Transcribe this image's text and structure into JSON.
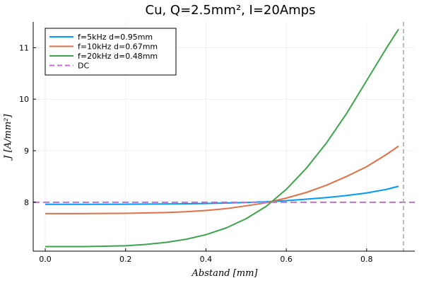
{
  "chart_data": {
    "type": "line",
    "title": "Cu, Q=2.5mm², I=20Amps",
    "xlabel": "Abstand  [mm]",
    "ylabel": "J  [A/mm²]",
    "xlim": [
      -0.03,
      0.92
    ],
    "ylim": [
      7.05,
      11.5
    ],
    "x_ticks": [
      0.0,
      0.2,
      0.4,
      0.6,
      0.8
    ],
    "x_tick_labels": [
      "0.0",
      "0.2",
      "0.4",
      "0.6",
      "0.8"
    ],
    "y_ticks": [
      8,
      9,
      10,
      11
    ],
    "y_tick_labels": [
      "8",
      "9",
      "10",
      "11"
    ],
    "grid": true,
    "legend_position": "top-left",
    "series": [
      {
        "name": "f=5kHz  d=0.95mm",
        "color": "#009af9",
        "style": "solid",
        "x": [
          0.0,
          0.1,
          0.2,
          0.3,
          0.4,
          0.5,
          0.55,
          0.6,
          0.65,
          0.7,
          0.75,
          0.8,
          0.85,
          0.8796
        ],
        "y": [
          7.96,
          7.96,
          7.962,
          7.966,
          7.975,
          7.995,
          8.01,
          8.03,
          8.06,
          8.09,
          8.13,
          8.18,
          8.25,
          8.31
        ]
      },
      {
        "name": "f=10kHz  d=0.67mm",
        "color": "#e26f46",
        "style": "solid",
        "x": [
          0.0,
          0.1,
          0.2,
          0.3,
          0.35,
          0.4,
          0.45,
          0.5,
          0.55,
          0.6,
          0.65,
          0.7,
          0.75,
          0.8,
          0.85,
          0.8796
        ],
        "y": [
          7.78,
          7.78,
          7.785,
          7.8,
          7.815,
          7.84,
          7.875,
          7.93,
          7.99,
          8.08,
          8.19,
          8.33,
          8.5,
          8.69,
          8.93,
          9.09
        ]
      },
      {
        "name": "f=20kHz  d=0.48mm",
        "color": "#3da44d",
        "style": "solid",
        "x": [
          0.0,
          0.1,
          0.2,
          0.25,
          0.3,
          0.35,
          0.4,
          0.45,
          0.5,
          0.55,
          0.6,
          0.65,
          0.7,
          0.75,
          0.8,
          0.85,
          0.8796
        ],
        "y": [
          7.14,
          7.14,
          7.155,
          7.18,
          7.22,
          7.28,
          7.37,
          7.5,
          7.68,
          7.92,
          8.25,
          8.66,
          9.15,
          9.72,
          10.36,
          11.0,
          11.36
        ]
      },
      {
        "name": "DC",
        "color": "#c271d2",
        "style": "dashed",
        "x": [
          -0.03,
          0.92
        ],
        "y": [
          8.0,
          8.0
        ]
      }
    ],
    "vline": {
      "x": 0.8918,
      "color": "#aaaaaa",
      "style": "dashed"
    }
  }
}
